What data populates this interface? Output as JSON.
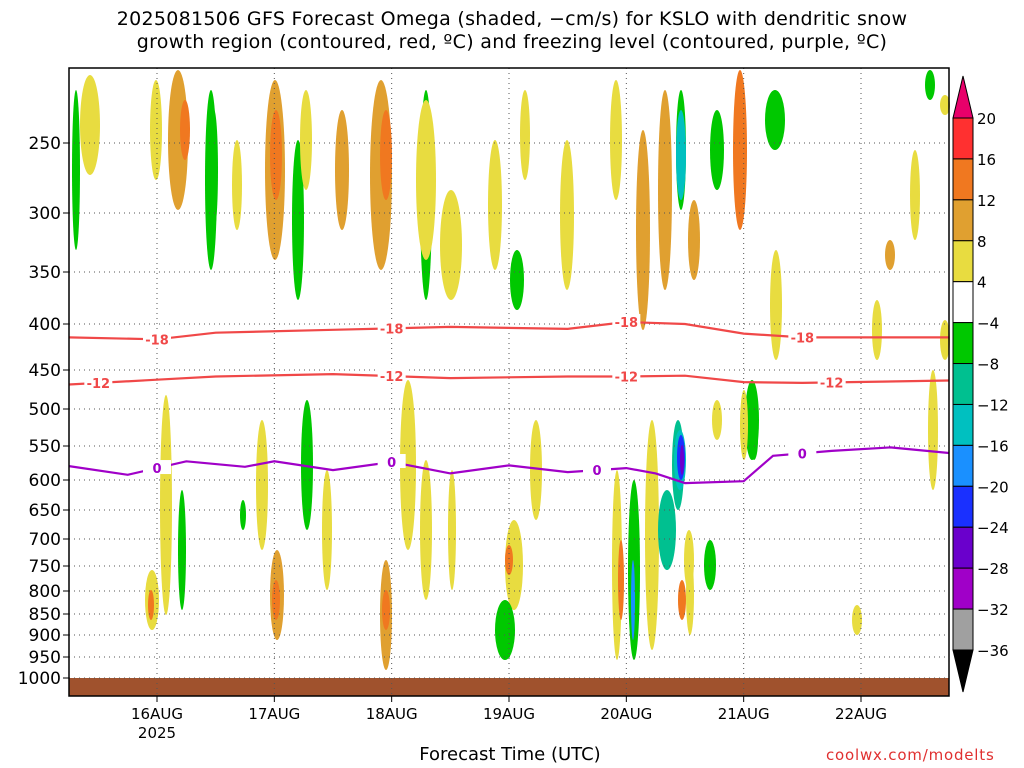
{
  "title": {
    "line1": "2025081506 GFS Forecast Omega (shaded, −cm/s) for KSLO with dendritic snow",
    "line2": "growth region (contoured, red, ºC) and freezing level (contoured, purple, ºC)"
  },
  "xaxis_label": "Forecast Time (UTC)",
  "credit": "coolwx.com/modelts",
  "chart_data": {
    "type": "heatmap",
    "x_ticks": [
      "16AUG",
      "17AUG",
      "18AUG",
      "19AUG",
      "20AUG",
      "21AUG",
      "22AUG"
    ],
    "x_year_label": "2025",
    "x_range": [
      "2025-08-15T06",
      "2025-08-22T18"
    ],
    "y_ticks": [
      250,
      300,
      350,
      400,
      450,
      500,
      550,
      600,
      650,
      700,
      750,
      800,
      850,
      900,
      950,
      1000
    ],
    "y_range": [
      200,
      1000
    ],
    "y_scale": "log (pressure, inverted)",
    "grid": true,
    "colorbar": {
      "labels": [
        "20",
        "16",
        "12",
        "8",
        "4",
        "−4",
        "−8",
        "−12",
        "−16",
        "−20",
        "−24",
        "−28",
        "−32",
        "−36"
      ],
      "colors": [
        "#e8006a",
        "#ff3030",
        "#f07820",
        "#e0a030",
        "#e8dc40",
        "#ffffff",
        "#00c800",
        "#00c090",
        "#00c0c0",
        "#1a90ff",
        "#1a30ff",
        "#6a00cc",
        "#a000c8",
        "#a0a0a0",
        "#000000"
      ]
    },
    "contours": [
      {
        "label": "-18",
        "color": "#f04848",
        "points": [
          [
            "2025-08-15T06",
            414
          ],
          [
            "2025-08-16T00",
            416
          ],
          [
            "2025-08-16T12",
            409
          ],
          [
            "2025-08-17T12",
            406
          ],
          [
            "2025-08-18T12",
            403
          ],
          [
            "2025-08-19T12",
            405
          ],
          [
            "2025-08-20T00",
            398
          ],
          [
            "2025-08-20T12",
            400
          ],
          [
            "2025-08-21T00",
            410
          ],
          [
            "2025-08-21T12",
            414
          ],
          [
            "2025-08-22T18",
            414
          ]
        ],
        "label_at": [
          "2025-08-16T00",
          "2025-08-18T00",
          "2025-08-20T00",
          "2025-08-21T12"
        ]
      },
      {
        "label": "-12",
        "color": "#f04848",
        "points": [
          [
            "2025-08-15T06",
            468
          ],
          [
            "2025-08-16T00",
            462
          ],
          [
            "2025-08-16T12",
            458
          ],
          [
            "2025-08-17T12",
            455
          ],
          [
            "2025-08-18T12",
            460
          ],
          [
            "2025-08-19T12",
            458
          ],
          [
            "2025-08-20T00",
            458
          ],
          [
            "2025-08-20T12",
            457
          ],
          [
            "2025-08-21T00",
            465
          ],
          [
            "2025-08-21T12",
            466
          ],
          [
            "2025-08-22T18",
            463
          ]
        ],
        "label_at": [
          "2025-08-15T12",
          "2025-08-18T00",
          "2025-08-20T00",
          "2025-08-21T18"
        ]
      },
      {
        "label": "0",
        "color": "#a000c8",
        "points": [
          [
            "2025-08-15T06",
            579
          ],
          [
            "2025-08-15T18",
            592
          ],
          [
            "2025-08-16T06",
            572
          ],
          [
            "2025-08-16T18",
            580
          ],
          [
            "2025-08-17T00",
            572
          ],
          [
            "2025-08-17T12",
            585
          ],
          [
            "2025-08-18T00",
            573
          ],
          [
            "2025-08-18T12",
            590
          ],
          [
            "2025-08-19T00",
            578
          ],
          [
            "2025-08-19T12",
            588
          ],
          [
            "2025-08-20T00",
            582
          ],
          [
            "2025-08-20T06",
            590
          ],
          [
            "2025-08-20T12",
            605
          ],
          [
            "2025-08-21T00",
            602
          ],
          [
            "2025-08-21T06",
            564
          ],
          [
            "2025-08-21T18",
            557
          ],
          [
            "2025-08-22T06",
            552
          ],
          [
            "2025-08-22T18",
            560
          ]
        ],
        "label_at": [
          "2025-08-16T00",
          "2025-08-18T00",
          "2025-08-19T18",
          "2025-08-21T12"
        ]
      }
    ],
    "ground": {
      "from_pressure": 1000,
      "color": "#a0522d"
    }
  }
}
